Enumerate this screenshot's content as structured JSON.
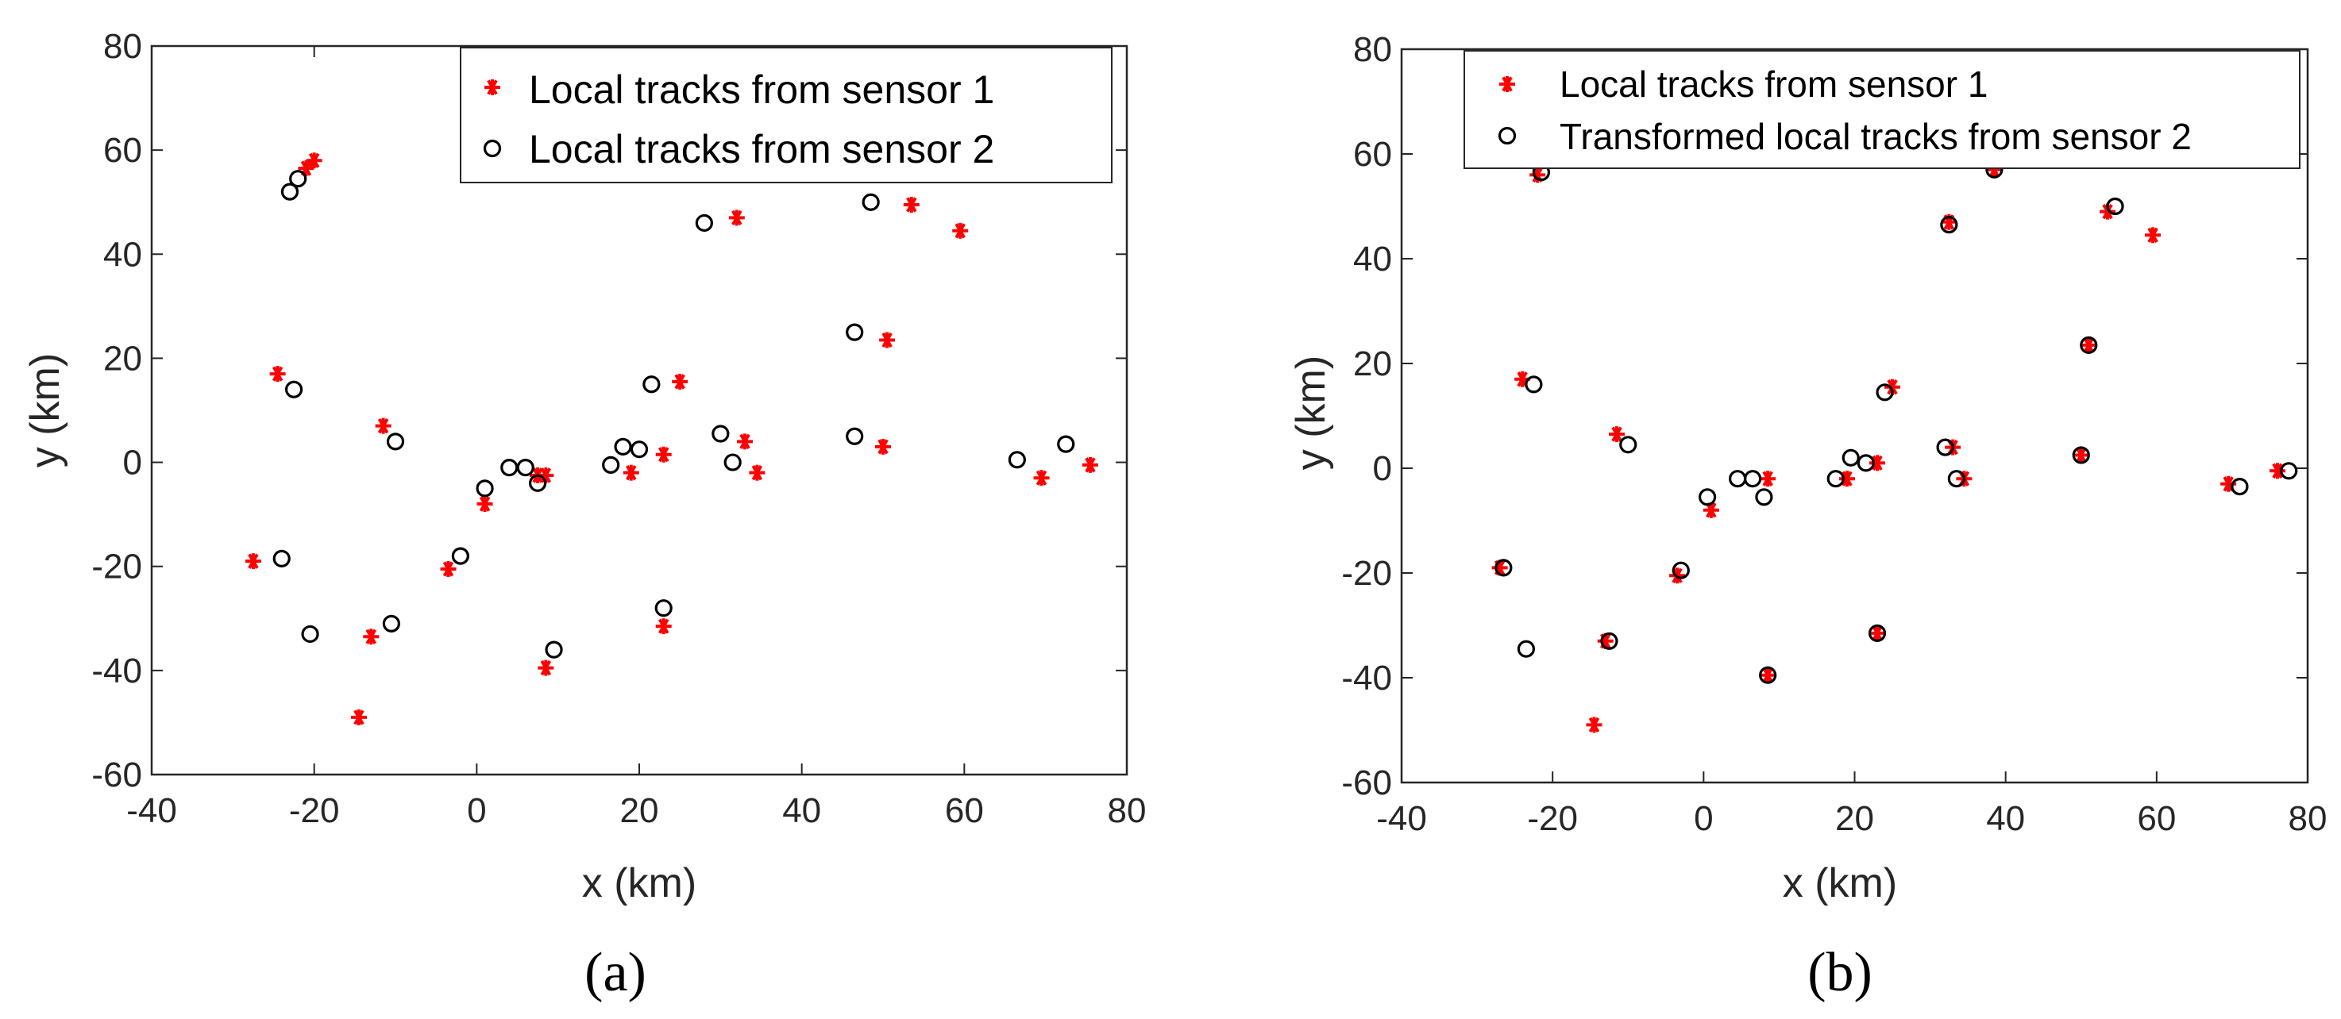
{
  "chart_data": [
    {
      "type": "scatter",
      "panel": "(a)",
      "xlabel": "x (km)",
      "ylabel": "y (km)",
      "xlim": [
        -40,
        80
      ],
      "ylim": [
        -60,
        80
      ],
      "xticks": [
        -40,
        -20,
        0,
        20,
        40,
        60,
        80
      ],
      "yticks": [
        -60,
        -40,
        -20,
        0,
        20,
        40,
        60,
        80
      ],
      "legend_position": "top-right",
      "series": [
        {
          "name": "Local tracks from sensor 1",
          "marker": "asterisk",
          "color": "#ff0000",
          "points": [
            [
              -27.5,
              -19
            ],
            [
              -24.5,
              17
            ],
            [
              -21,
              56.5
            ],
            [
              -20,
              58
            ],
            [
              -14.5,
              -49
            ],
            [
              -13,
              -33.5
            ],
            [
              -11.5,
              7
            ],
            [
              -3.5,
              -20.5
            ],
            [
              1,
              -8
            ],
            [
              7.5,
              -2.5
            ],
            [
              8.5,
              -39.5
            ],
            [
              8.5,
              -2.5
            ],
            [
              19,
              -2
            ],
            [
              23,
              1.5
            ],
            [
              23,
              -31.5
            ],
            [
              25,
              15.5
            ],
            [
              32,
              47
            ],
            [
              33,
              4
            ],
            [
              34.5,
              -2
            ],
            [
              50,
              3
            ],
            [
              50.5,
              23.5
            ],
            [
              53.5,
              49.5
            ],
            [
              59.5,
              44.5
            ],
            [
              69.5,
              -3
            ],
            [
              75.5,
              -0.5
            ]
          ]
        },
        {
          "name": "Local tracks from sensor 2",
          "marker": "circle",
          "color": "#000000",
          "points": [
            [
              -24,
              -18.5
            ],
            [
              -23,
              52
            ],
            [
              -22.5,
              14
            ],
            [
              -22,
              54.5
            ],
            [
              -20.5,
              -33
            ],
            [
              -10.5,
              -31
            ],
            [
              -10,
              4
            ],
            [
              -2,
              -18
            ],
            [
              1,
              -5
            ],
            [
              4,
              -1
            ],
            [
              6,
              -1
            ],
            [
              7.5,
              -4
            ],
            [
              9.5,
              -36
            ],
            [
              16.5,
              -0.5
            ],
            [
              18,
              3
            ],
            [
              20,
              2.5
            ],
            [
              21.5,
              15
            ],
            [
              23,
              -28
            ],
            [
              28,
              46
            ],
            [
              30,
              5.5
            ],
            [
              31.5,
              0
            ],
            [
              46.5,
              25
            ],
            [
              46.5,
              5
            ],
            [
              48.5,
              50
            ],
            [
              66.5,
              0.5
            ],
            [
              72.5,
              3.5
            ]
          ]
        }
      ]
    },
    {
      "type": "scatter",
      "panel": "(b)",
      "xlabel": "x (km)",
      "ylabel": "y (km)",
      "xlim": [
        -40,
        80
      ],
      "ylim": [
        -60,
        80
      ],
      "xticks": [
        -40,
        -20,
        0,
        20,
        40,
        60,
        80
      ],
      "yticks": [
        -60,
        -40,
        -20,
        0,
        20,
        40,
        60,
        80
      ],
      "legend_position": "top-right",
      "series": [
        {
          "name": "Local tracks from sensor 1",
          "marker": "asterisk",
          "color": "#ff0000",
          "points": [
            [
              -27,
              -19
            ],
            [
              -24,
              17
            ],
            [
              -22,
              56
            ],
            [
              -14.5,
              -49
            ],
            [
              -13,
              -33
            ],
            [
              -11.5,
              6.5
            ],
            [
              -3.5,
              -20.5
            ],
            [
              1,
              -8
            ],
            [
              8.5,
              -2
            ],
            [
              8.5,
              -39.5
            ],
            [
              19,
              -2
            ],
            [
              23,
              1
            ],
            [
              23,
              -31.5
            ],
            [
              25,
              15.5
            ],
            [
              32.5,
              47
            ],
            [
              33,
              4
            ],
            [
              34.5,
              -2
            ],
            [
              38.5,
              57
            ],
            [
              50,
              2.5
            ],
            [
              51,
              23.5
            ],
            [
              53.5,
              49
            ],
            [
              59.5,
              44.5
            ],
            [
              69.5,
              -3
            ],
            [
              76,
              -0.5
            ]
          ]
        },
        {
          "name": "Transformed local tracks from sensor 2",
          "marker": "circle",
          "color": "#000000",
          "points": [
            [
              -26.5,
              -19
            ],
            [
              -23.5,
              -34.5
            ],
            [
              -22.5,
              16
            ],
            [
              -21.5,
              56.5
            ],
            [
              -12.5,
              -33
            ],
            [
              -10,
              4.5
            ],
            [
              -3,
              -19.5
            ],
            [
              0.5,
              -5.5
            ],
            [
              4.5,
              -2
            ],
            [
              6.5,
              -2
            ],
            [
              8,
              -5.5
            ],
            [
              8.5,
              -39.5
            ],
            [
              17.5,
              -2
            ],
            [
              19.5,
              2
            ],
            [
              21.5,
              1
            ],
            [
              23,
              -31.5
            ],
            [
              24,
              14.5
            ],
            [
              32,
              4
            ],
            [
              32.5,
              46.5
            ],
            [
              33.5,
              -2
            ],
            [
              38.5,
              57
            ],
            [
              50,
              2.5
            ],
            [
              51,
              23.5
            ],
            [
              54.5,
              50
            ],
            [
              71,
              -3.5
            ],
            [
              77.5,
              -0.5
            ]
          ]
        }
      ]
    }
  ],
  "captions": [
    "(a)",
    "(b)"
  ]
}
